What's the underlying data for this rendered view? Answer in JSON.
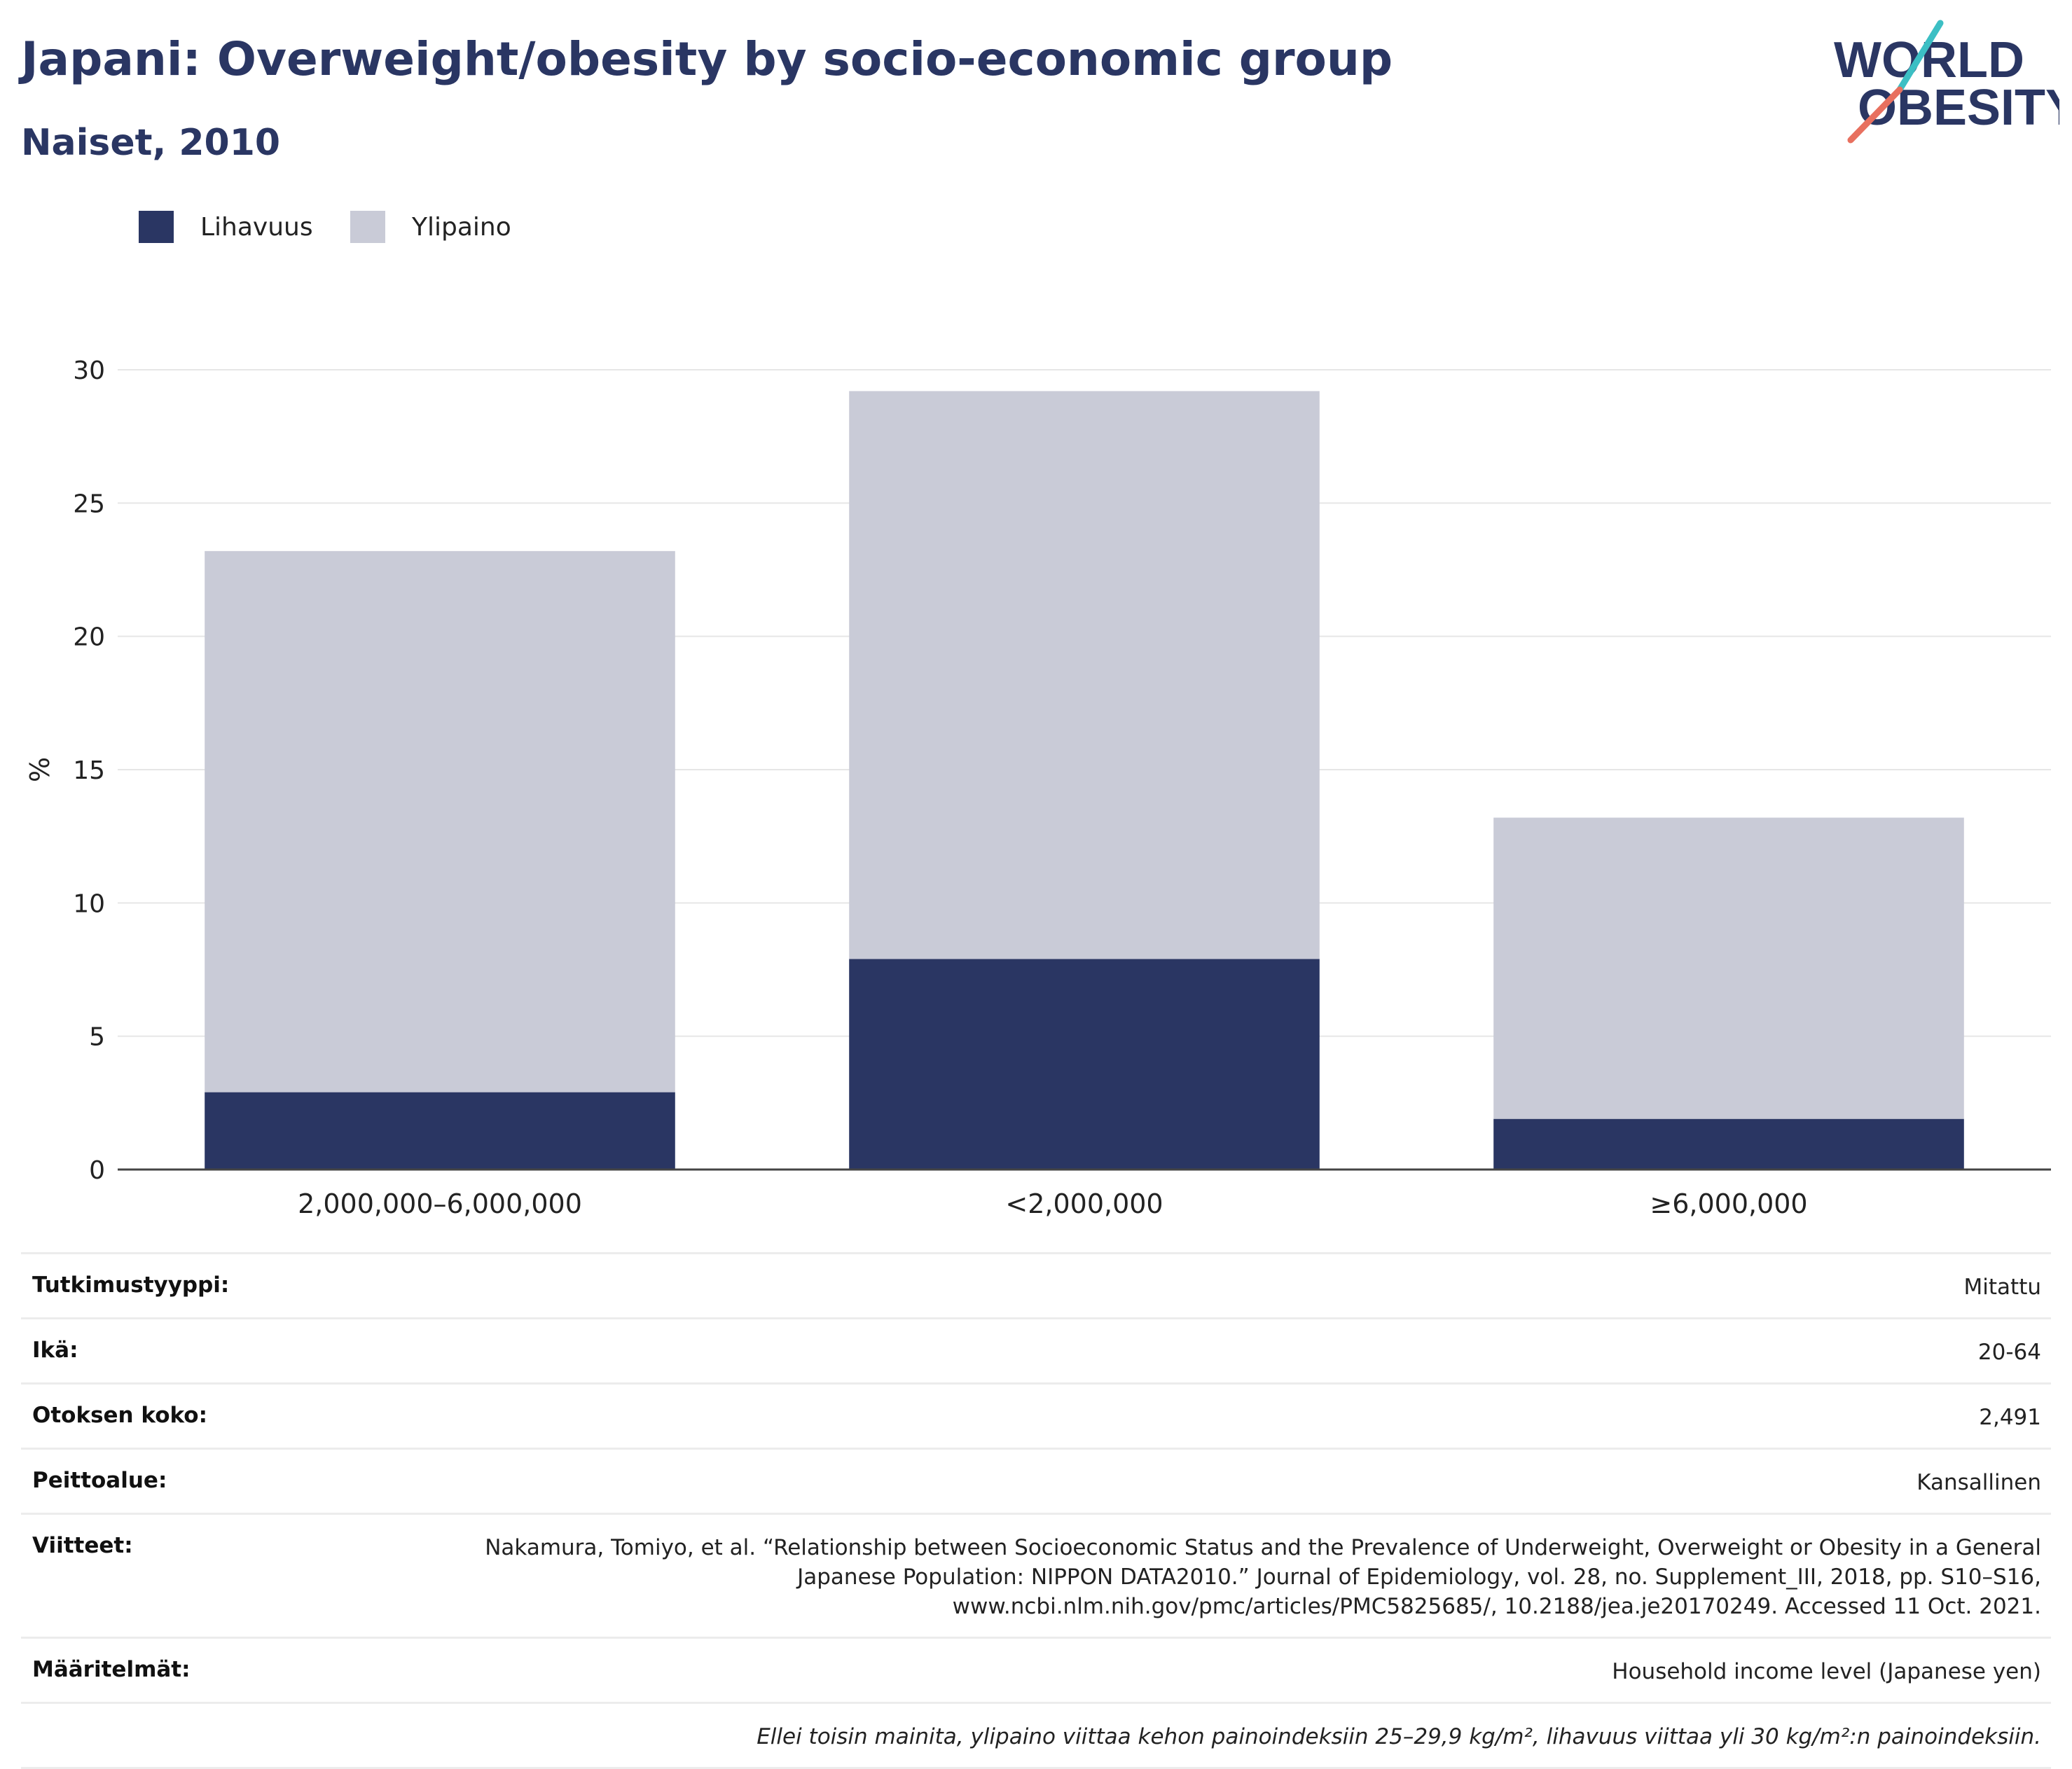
{
  "header": {
    "title": "Japani: Overweight/obesity by socio-economic group",
    "subtitle": "Naiset, 2010"
  },
  "logo": {
    "line1": "WORLD",
    "line2": "OBESITY",
    "icon": "world-obesity-logo"
  },
  "legend": [
    {
      "label": "Lihavuus",
      "color": "#2a3663"
    },
    {
      "label": "Ylipaino",
      "color": "#c9cbd7"
    }
  ],
  "chart_data": {
    "type": "bar",
    "stacked": true,
    "categories": [
      "2,000,000–6,000,000",
      "<2,000,000",
      "≥6,000,000"
    ],
    "series": [
      {
        "name": "Lihavuus",
        "values": [
          2.9,
          7.9,
          1.9
        ],
        "color": "#2a3663"
      },
      {
        "name": "Ylipaino",
        "values": [
          20.3,
          21.3,
          11.3
        ],
        "color": "#c9cbd7"
      }
    ],
    "ylabel": "%",
    "xlabel": "",
    "ylim": [
      0,
      30
    ],
    "yticks": [
      0,
      5,
      10,
      15,
      20,
      25,
      30
    ],
    "grid": true,
    "legend_position": "top-left"
  },
  "meta": {
    "rows": [
      {
        "key": "Tutkimustyyppi:",
        "value": "Mitattu"
      },
      {
        "key": "Ikä:",
        "value": "20-64"
      },
      {
        "key": "Otoksen koko:",
        "value": "2,491"
      },
      {
        "key": "Peittoalue:",
        "value": "Kansallinen"
      },
      {
        "key": "Viitteet:",
        "value": "Nakamura, Tomiyo, et al. “Relationship between Socioeconomic Status and the Prevalence of Underweight, Overweight or Obesity in a General Japanese Population: NIPPON DATA2010.” Journal of Epidemiology, vol. 28, no. Supplement_III, 2018, pp. S10–S16, www.ncbi.nlm.nih.gov/pmc/articles/PMC5825685/, 10.2188/jea.je20170249. Accessed 11 Oct. 2021."
      },
      {
        "key": "Määritelmät:",
        "value": "Household income level (Japanese yen)"
      }
    ],
    "note": "Ellei toisin mainita, ylipaino viittaa kehon painoindeksiin 25–29,9 kg/m², lihavuus viittaa yli 30 kg/m²:n painoindeksiin."
  }
}
